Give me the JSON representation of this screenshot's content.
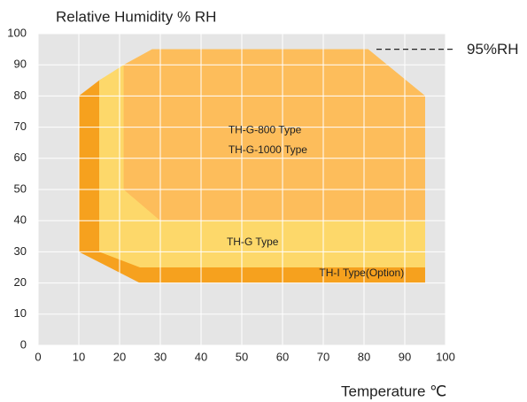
{
  "chart_data": {
    "type": "area",
    "y_label": "Relative Humidity % RH",
    "x_label": "Temperature ℃",
    "xlim": [
      0,
      100
    ],
    "xticks": [
      0,
      10,
      20,
      30,
      40,
      50,
      60,
      70,
      80,
      90,
      100
    ],
    "ylim": [
      0,
      100
    ],
    "yticks": [
      0,
      10,
      20,
      30,
      40,
      50,
      60,
      70,
      80,
      90,
      100
    ],
    "grid": true,
    "series": [
      {
        "labels": [
          "TH-I Type(Option)"
        ],
        "color": "#f6a11e",
        "x": [
          10,
          10,
          15,
          28,
          81,
          95,
          95,
          25
        ],
        "values": [
          30,
          80,
          85,
          95,
          95,
          80,
          20,
          20
        ]
      },
      {
        "labels": [
          "TH-G Type"
        ],
        "color": "#fdd86a",
        "x": [
          15,
          15,
          21,
          28,
          81,
          95,
          95,
          25
        ],
        "values": [
          30,
          85,
          90,
          95,
          95,
          80,
          25,
          25
        ]
      },
      {
        "labels": [
          "TH-G-800 Type",
          "TH-G-1000 Type"
        ],
        "color": "#fdbd5b",
        "x": [
          21,
          21,
          28,
          81,
          95,
          95,
          30
        ],
        "values": [
          50,
          90,
          95,
          95,
          80,
          40,
          40
        ]
      }
    ],
    "annotations": [
      {
        "text": "95%RH",
        "y": 95
      }
    ]
  }
}
